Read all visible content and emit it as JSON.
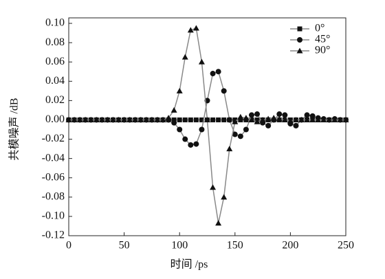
{
  "chart_data": {
    "type": "line",
    "x_label": "时间 /ps",
    "y_label": "共模噪声 /dB",
    "x": [
      0,
      5,
      10,
      15,
      20,
      25,
      30,
      35,
      40,
      45,
      50,
      55,
      60,
      65,
      70,
      75,
      80,
      85,
      90,
      95,
      100,
      105,
      110,
      115,
      120,
      125,
      130,
      135,
      140,
      145,
      150,
      155,
      160,
      165,
      170,
      175,
      180,
      185,
      190,
      195,
      200,
      205,
      210,
      215,
      220,
      225,
      230,
      235,
      240,
      245,
      250
    ],
    "series": [
      {
        "name": "0°",
        "color": "#888888",
        "marker": "square",
        "values": [
          0,
          0,
          0,
          0,
          0,
          0,
          0,
          0,
          0,
          0,
          0,
          0,
          0,
          0,
          0,
          0,
          0,
          0,
          0,
          0,
          0,
          0,
          0,
          0,
          0,
          0,
          0,
          0,
          0,
          0,
          0,
          0,
          0,
          0,
          0,
          0,
          0,
          0,
          0,
          0,
          0,
          0,
          0,
          0,
          0,
          0,
          0,
          0,
          0,
          0,
          0
        ]
      },
      {
        "name": "45°",
        "color": "#888888",
        "marker": "circle",
        "values": [
          0,
          0,
          0,
          0,
          0,
          0,
          0,
          0,
          0,
          0,
          0,
          0,
          0,
          0,
          0,
          0,
          0,
          0,
          0,
          -0.003,
          -0.01,
          -0.02,
          -0.026,
          -0.025,
          -0.01,
          0.02,
          0.048,
          0.05,
          0.03,
          0,
          -0.015,
          -0.017,
          -0.01,
          0.005,
          0.006,
          -0.003,
          -0.006,
          0,
          0.006,
          0.005,
          -0.004,
          -0.006,
          0,
          0.005,
          0.004,
          0.002,
          0.001,
          0,
          0.001,
          0,
          0
        ]
      },
      {
        "name": "90°",
        "color": "#888888",
        "marker": "triangle",
        "values": [
          0,
          0,
          0,
          0,
          0,
          0,
          0,
          0,
          0,
          0,
          0,
          0,
          0,
          0,
          0,
          0,
          0,
          0,
          0.002,
          0.01,
          0.03,
          0.065,
          0.093,
          0.095,
          0.06,
          0,
          -0.07,
          -0.107,
          -0.08,
          -0.03,
          -0.002,
          0.003,
          0.002,
          0,
          -0.002,
          0,
          0.001,
          0.002,
          0.001,
          0,
          -0.001,
          0,
          0,
          0,
          0,
          0,
          0,
          0,
          0,
          0,
          0
        ]
      }
    ],
    "xlim": [
      0,
      250
    ],
    "xticks": [
      0,
      50,
      100,
      150,
      200,
      250
    ],
    "ylim": [
      -0.12,
      0.1
    ],
    "yticks": [
      {
        "value": 0.1,
        "label": "0.10"
      },
      0.08,
      0.06,
      0.04,
      0.02,
      {
        "value": 0,
        "label": "0.00"
      },
      -0.02,
      -0.04,
      -0.06,
      -0.08,
      {
        "value": -0.1,
        "label": "-0.10"
      },
      {
        "value": -0.12,
        "label": "-0.12"
      }
    ],
    "legend": "upper right"
  }
}
